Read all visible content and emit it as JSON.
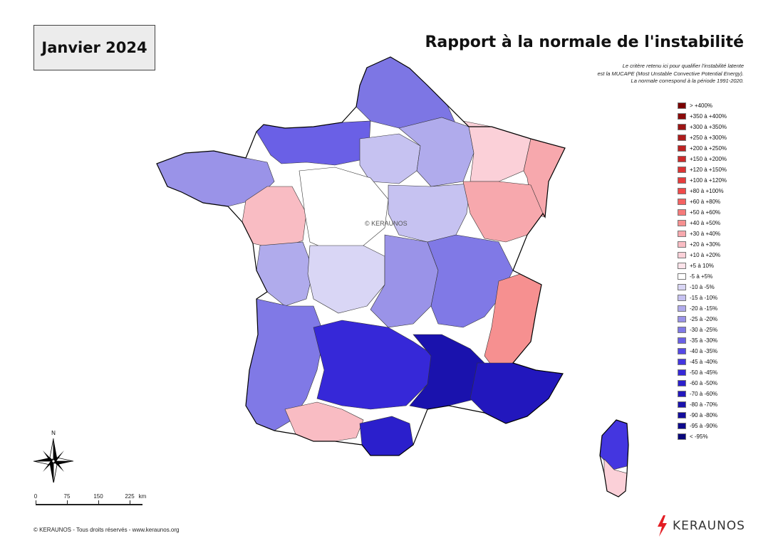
{
  "month": "Janvier 2024",
  "title": "Rapport à la normale de l'instabilité",
  "description": [
    "Le critère retenu ici pour qualifier l'instabilité latente",
    "est la MUCAPE (Most Unstable Convective Potential Energy).",
    "La normale correspond à la période 1991-2020."
  ],
  "watermark": "© KERAUNOS",
  "legend": [
    {
      "label": "> +400%",
      "color": "#7a0000"
    },
    {
      "label": "+350 à +400%",
      "color": "#8b0a0a"
    },
    {
      "label": "+300 à +350%",
      "color": "#9c1414"
    },
    {
      "label": "+250 à +300%",
      "color": "#ad1c1c"
    },
    {
      "label": "+200 à +250%",
      "color": "#bd2323"
    },
    {
      "label": "+150 à +200%",
      "color": "#cd2b2b"
    },
    {
      "label": "+120 à +150%",
      "color": "#dc3434"
    },
    {
      "label": "+100 à +120%",
      "color": "#e63d3d"
    },
    {
      "label": "+80 à +100%",
      "color": "#f04a4a"
    },
    {
      "label": "+60 à +80%",
      "color": "#f46262"
    },
    {
      "label": "+50 à +60%",
      "color": "#f57a7a"
    },
    {
      "label": "+40 à +50%",
      "color": "#f69090"
    },
    {
      "label": "+30 à +40%",
      "color": "#f7a8ad"
    },
    {
      "label": "+20 à +30%",
      "color": "#f9bcc3"
    },
    {
      "label": "+10 à +20%",
      "color": "#fbd0d8"
    },
    {
      "label": "+5 à 10%",
      "color": "#fde3ea"
    },
    {
      "label": "-5 à +5%",
      "color": "#ffffff"
    },
    {
      "label": "-10 à -5%",
      "color": "#d9d6f5"
    },
    {
      "label": "-15 à -10%",
      "color": "#c6c2f1"
    },
    {
      "label": "-20 à -15%",
      "color": "#b0abec"
    },
    {
      "label": "-25 à -20%",
      "color": "#9a93e8"
    },
    {
      "label": "-30 à -25%",
      "color": "#8079e6"
    },
    {
      "label": "-35 à -30%",
      "color": "#6a60e6"
    },
    {
      "label": "-40 à -35%",
      "color": "#5549e6"
    },
    {
      "label": "-45 à -40%",
      "color": "#4436e0"
    },
    {
      "label": "-50 à -45%",
      "color": "#3628d8"
    },
    {
      "label": "-60 à -50%",
      "color": "#2b1fcc"
    },
    {
      "label": "-70 à -60%",
      "color": "#2217bd"
    },
    {
      "label": "-80 à -70%",
      "color": "#1a12ad"
    },
    {
      "label": "-90 à -80%",
      "color": "#130d9d"
    },
    {
      "label": "-95 à -90%",
      "color": "#0d098c"
    },
    {
      "label": "< -95%",
      "color": "#08067a"
    }
  ],
  "scale": {
    "labels": [
      "0",
      "75",
      "150",
      "225"
    ],
    "unit": "km"
  },
  "compass": {
    "north_label": "N",
    "icon": "compass-rose-icon"
  },
  "footer": "© KERAUNOS - Tous droits réservés - www.keraunos.org",
  "brand": {
    "name": "KERAUNOS",
    "icon": "lightning-icon",
    "color": "#e31e24"
  },
  "regions": [
    {
      "name": "nord",
      "color": "#7d76e4"
    },
    {
      "name": "normandie",
      "color": "#6a60e6"
    },
    {
      "name": "ile-de-france",
      "color": "#c6c2f1"
    },
    {
      "name": "champagne",
      "color": "#b0abec"
    },
    {
      "name": "lorraine",
      "color": "#fbd0d8"
    },
    {
      "name": "alsace",
      "color": "#f7a8ad"
    },
    {
      "name": "bretagne",
      "color": "#9a93e8"
    },
    {
      "name": "pays-de-la-loire",
      "color": "#f9bcc3"
    },
    {
      "name": "centre",
      "color": "#ffffff"
    },
    {
      "name": "bourgogne",
      "color": "#c6c2f1"
    },
    {
      "name": "franche-comte",
      "color": "#f7a8ad"
    },
    {
      "name": "poitou",
      "color": "#b0abec"
    },
    {
      "name": "limousin",
      "color": "#d9d6f5"
    },
    {
      "name": "auvergne",
      "color": "#9a93e8"
    },
    {
      "name": "rhone-alpes",
      "color": "#8079e6"
    },
    {
      "name": "alpes",
      "color": "#f69090"
    },
    {
      "name": "aquitaine",
      "color": "#8079e6"
    },
    {
      "name": "midi-pyrenees",
      "color": "#3628d8"
    },
    {
      "name": "languedoc",
      "color": "#1a12ad"
    },
    {
      "name": "provence",
      "color": "#2217bd"
    },
    {
      "name": "pyrenees",
      "color": "#f9bcc3"
    },
    {
      "name": "roussillon",
      "color": "#2b1fcc"
    },
    {
      "name": "corse-nord",
      "color": "#4436e0"
    },
    {
      "name": "corse-sud",
      "color": "#fbd0d8"
    }
  ]
}
